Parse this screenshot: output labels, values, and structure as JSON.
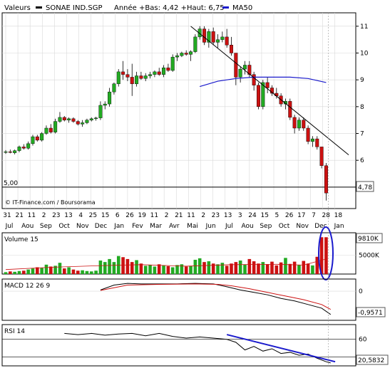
{
  "legend": {
    "series_label": "Valeurs",
    "ticker": "SONAE IND.SGP",
    "range_text": "Année +Bas: 4,42 +Haut: 6,75",
    "ma_label": "MA50"
  },
  "colors": {
    "up": "#22aa22",
    "down": "#cc1111",
    "ma": "#1a1acc",
    "trend": "#1a1acc",
    "grid": "#d8d8d8",
    "axis": "#000000",
    "callout_border": "#1a1acc"
  },
  "credit": "© IT-Finance.com / Boursorama",
  "reference_line": {
    "value": 5,
    "label": "5,00"
  },
  "last_price_label": "4,78",
  "chart_data": [
    {
      "type": "candlestick",
      "title": "SONAE IND.SGP",
      "y_axis": {
        "ticks": [
          6,
          7,
          8,
          9,
          10,
          11
        ],
        "min": 4.2,
        "max": 11.5,
        "side": "right"
      },
      "x_axis": {
        "day_labels": [
          "31",
          "21",
          "11",
          "2",
          "23",
          "13",
          "4",
          "25",
          "15",
          "6",
          "26",
          "19",
          "11",
          "2",
          "21",
          "11",
          "2",
          "23",
          "13",
          "3",
          "24",
          "15",
          "5",
          "26",
          "17",
          "7",
          "28",
          "18"
        ],
        "month_labels": [
          "Jul",
          "Aou",
          "Sep",
          "Oct",
          "Nov",
          "Dec",
          "Jan",
          "Fev",
          "Mar",
          "Avr",
          "Mai",
          "Jun",
          "Jul",
          "Aou",
          "Sep",
          "Oct",
          "Nov",
          "Dec",
          "Jan"
        ]
      },
      "candles": [
        {
          "o": 6.3,
          "h": 6.38,
          "l": 6.24,
          "c": 6.32
        },
        {
          "o": 6.32,
          "h": 6.4,
          "l": 6.26,
          "c": 6.3
        },
        {
          "o": 6.28,
          "h": 6.4,
          "l": 6.22,
          "c": 6.36
        },
        {
          "o": 6.36,
          "h": 6.55,
          "l": 6.3,
          "c": 6.5
        },
        {
          "o": 6.5,
          "h": 6.6,
          "l": 6.4,
          "c": 6.45
        },
        {
          "o": 6.45,
          "h": 6.7,
          "l": 6.4,
          "c": 6.62
        },
        {
          "o": 6.62,
          "h": 6.95,
          "l": 6.55,
          "c": 6.88
        },
        {
          "o": 6.88,
          "h": 6.95,
          "l": 6.7,
          "c": 6.75
        },
        {
          "o": 6.75,
          "h": 7.05,
          "l": 6.7,
          "c": 7.0
        },
        {
          "o": 7.0,
          "h": 7.3,
          "l": 6.95,
          "c": 7.2
        },
        {
          "o": 7.2,
          "h": 7.35,
          "l": 7.0,
          "c": 7.05
        },
        {
          "o": 7.05,
          "h": 7.55,
          "l": 7.0,
          "c": 7.45
        },
        {
          "o": 7.45,
          "h": 7.8,
          "l": 7.4,
          "c": 7.6
        },
        {
          "o": 7.6,
          "h": 7.65,
          "l": 7.45,
          "c": 7.5
        },
        {
          "o": 7.5,
          "h": 7.6,
          "l": 7.4,
          "c": 7.55
        },
        {
          "o": 7.55,
          "h": 7.6,
          "l": 7.4,
          "c": 7.45
        },
        {
          "o": 7.45,
          "h": 7.5,
          "l": 7.3,
          "c": 7.35
        },
        {
          "o": 7.35,
          "h": 7.5,
          "l": 7.25,
          "c": 7.4
        },
        {
          "o": 7.4,
          "h": 7.55,
          "l": 7.35,
          "c": 7.5
        },
        {
          "o": 7.5,
          "h": 7.6,
          "l": 7.45,
          "c": 7.55
        },
        {
          "o": 7.55,
          "h": 7.62,
          "l": 7.48,
          "c": 7.58
        },
        {
          "o": 7.58,
          "h": 8.2,
          "l": 7.5,
          "c": 8.05
        },
        {
          "o": 8.05,
          "h": 8.2,
          "l": 7.9,
          "c": 8.1
        },
        {
          "o": 8.1,
          "h": 8.7,
          "l": 8.0,
          "c": 8.55
        },
        {
          "o": 8.55,
          "h": 8.9,
          "l": 8.45,
          "c": 8.85
        },
        {
          "o": 8.85,
          "h": 9.4,
          "l": 8.75,
          "c": 9.3
        },
        {
          "o": 9.3,
          "h": 9.7,
          "l": 9.0,
          "c": 9.2
        },
        {
          "o": 9.2,
          "h": 9.4,
          "l": 8.95,
          "c": 9.1
        },
        {
          "o": 9.1,
          "h": 9.6,
          "l": 8.4,
          "c": 8.85
        },
        {
          "o": 8.85,
          "h": 9.3,
          "l": 8.75,
          "c": 9.15
        },
        {
          "o": 9.15,
          "h": 9.3,
          "l": 9.0,
          "c": 9.05
        },
        {
          "o": 9.05,
          "h": 9.25,
          "l": 8.95,
          "c": 9.15
        },
        {
          "o": 9.15,
          "h": 9.3,
          "l": 9.05,
          "c": 9.2
        },
        {
          "o": 9.2,
          "h": 9.35,
          "l": 9.1,
          "c": 9.3
        },
        {
          "o": 9.3,
          "h": 9.45,
          "l": 9.15,
          "c": 9.2
        },
        {
          "o": 9.2,
          "h": 9.55,
          "l": 9.1,
          "c": 9.45
        },
        {
          "o": 9.45,
          "h": 9.6,
          "l": 9.3,
          "c": 9.35
        },
        {
          "o": 9.35,
          "h": 9.95,
          "l": 9.3,
          "c": 9.85
        },
        {
          "o": 9.85,
          "h": 10.0,
          "l": 9.7,
          "c": 9.9
        },
        {
          "o": 9.9,
          "h": 10.05,
          "l": 9.85,
          "c": 10.0
        },
        {
          "o": 10.0,
          "h": 10.1,
          "l": 9.9,
          "c": 9.95
        },
        {
          "o": 9.95,
          "h": 10.1,
          "l": 9.7,
          "c": 10.05
        },
        {
          "o": 10.05,
          "h": 10.7,
          "l": 10.0,
          "c": 10.6
        },
        {
          "o": 10.6,
          "h": 11.0,
          "l": 10.5,
          "c": 10.9
        },
        {
          "o": 10.9,
          "h": 11.0,
          "l": 10.3,
          "c": 10.4
        },
        {
          "o": 10.4,
          "h": 10.9,
          "l": 10.2,
          "c": 10.8
        },
        {
          "o": 10.8,
          "h": 10.95,
          "l": 10.3,
          "c": 10.4
        },
        {
          "o": 10.4,
          "h": 10.7,
          "l": 10.2,
          "c": 10.5
        },
        {
          "o": 10.5,
          "h": 10.8,
          "l": 10.4,
          "c": 10.6
        },
        {
          "o": 10.6,
          "h": 10.9,
          "l": 10.2,
          "c": 10.3
        },
        {
          "o": 10.3,
          "h": 10.6,
          "l": 9.9,
          "c": 10.0
        },
        {
          "o": 10.0,
          "h": 10.0,
          "l": 8.8,
          "c": 9.1
        },
        {
          "o": 9.1,
          "h": 9.5,
          "l": 8.9,
          "c": 9.4
        },
        {
          "o": 9.4,
          "h": 9.7,
          "l": 9.2,
          "c": 9.55
        },
        {
          "o": 9.55,
          "h": 9.7,
          "l": 9.1,
          "c": 9.2
        },
        {
          "o": 9.2,
          "h": 9.3,
          "l": 8.6,
          "c": 8.8
        },
        {
          "o": 8.8,
          "h": 8.9,
          "l": 7.9,
          "c": 8.0
        },
        {
          "o": 8.0,
          "h": 9.0,
          "l": 7.9,
          "c": 8.9
        },
        {
          "o": 8.9,
          "h": 9.1,
          "l": 8.5,
          "c": 8.7
        },
        {
          "o": 8.7,
          "h": 8.8,
          "l": 8.4,
          "c": 8.5
        },
        {
          "o": 8.5,
          "h": 8.7,
          "l": 8.3,
          "c": 8.4
        },
        {
          "o": 8.4,
          "h": 8.5,
          "l": 8.0,
          "c": 8.1
        },
        {
          "o": 8.1,
          "h": 8.3,
          "l": 7.9,
          "c": 8.2
        },
        {
          "o": 8.2,
          "h": 8.3,
          "l": 7.5,
          "c": 7.6
        },
        {
          "o": 7.6,
          "h": 7.7,
          "l": 7.0,
          "c": 7.2
        },
        {
          "o": 7.2,
          "h": 7.6,
          "l": 7.1,
          "c": 7.5
        },
        {
          "o": 7.5,
          "h": 7.6,
          "l": 7.1,
          "c": 7.2
        },
        {
          "o": 7.2,
          "h": 7.3,
          "l": 6.6,
          "c": 6.7
        },
        {
          "o": 6.7,
          "h": 6.9,
          "l": 6.5,
          "c": 6.8
        },
        {
          "o": 6.8,
          "h": 6.9,
          "l": 6.4,
          "c": 6.5
        },
        {
          "o": 6.5,
          "h": 6.5,
          "l": 5.7,
          "c": 5.8
        },
        {
          "o": 5.8,
          "h": 5.9,
          "l": 4.5,
          "c": 4.78
        }
      ],
      "ma50": {
        "name": "MA50",
        "points": [
          [
            43,
            8.75
          ],
          [
            47,
            8.95
          ],
          [
            51,
            9.05
          ],
          [
            55,
            9.1
          ],
          [
            59,
            9.1
          ],
          [
            63,
            9.1
          ],
          [
            67,
            9.05
          ],
          [
            71,
            8.9
          ]
        ]
      },
      "trendline": {
        "from": [
          41,
          11.0
        ],
        "to": [
          76,
          6.2
        ]
      }
    },
    {
      "type": "bar",
      "title": "Volume 15",
      "y_ticks": [
        5000
      ],
      "y_tick_labels": [
        "5000K"
      ],
      "last_value_label": "9810K",
      "max": 11000,
      "values": [
        500,
        700,
        600,
        800,
        900,
        1200,
        1500,
        1800,
        1600,
        2500,
        2000,
        2200,
        3000,
        1500,
        1800,
        1200,
        900,
        1000,
        800,
        700,
        900,
        3600,
        3200,
        4000,
        3200,
        4800,
        4500,
        4000,
        3200,
        3700,
        2800,
        2200,
        2400,
        2000,
        2600,
        2300,
        2100,
        1800,
        2400,
        2600,
        2000,
        2200,
        3800,
        4200,
        3200,
        3400,
        2800,
        2600,
        3000,
        2200,
        2800,
        3200,
        3600,
        2500,
        4000,
        3400,
        2800,
        3200,
        2600,
        3300,
        2300,
        3100,
        4300,
        2700,
        3300,
        2400,
        3500,
        2800,
        2300,
        4600,
        9810,
        9810
      ],
      "signal_line": [
        [
          0,
          1200
        ],
        [
          10,
          1800
        ],
        [
          20,
          2200
        ],
        [
          30,
          2500
        ],
        [
          40,
          2100
        ],
        [
          50,
          2500
        ],
        [
          60,
          2600
        ],
        [
          66,
          2400
        ],
        [
          71,
          4000
        ]
      ]
    },
    {
      "type": "line",
      "title": "MACD 12 26 9",
      "y_ticks": [
        0
      ],
      "last_value_label": "-0,9571",
      "min": -1.2,
      "max": 0.5,
      "macd": [
        [
          21,
          0.05
        ],
        [
          24,
          0.25
        ],
        [
          27,
          0.32
        ],
        [
          30,
          0.3
        ],
        [
          34,
          0.3
        ],
        [
          38,
          0.3
        ],
        [
          42,
          0.32
        ],
        [
          46,
          0.3
        ],
        [
          49,
          0.18
        ],
        [
          52,
          0.05
        ],
        [
          55,
          -0.05
        ],
        [
          58,
          -0.15
        ],
        [
          61,
          -0.3
        ],
        [
          64,
          -0.4
        ],
        [
          67,
          -0.55
        ],
        [
          70,
          -0.7
        ],
        [
          72,
          -0.96
        ]
      ],
      "signal": [
        [
          21,
          0.03
        ],
        [
          27,
          0.25
        ],
        [
          34,
          0.28
        ],
        [
          42,
          0.3
        ],
        [
          47,
          0.28
        ],
        [
          50,
          0.22
        ],
        [
          54,
          0.1
        ],
        [
          58,
          -0.05
        ],
        [
          62,
          -0.2
        ],
        [
          66,
          -0.35
        ],
        [
          70,
          -0.55
        ],
        [
          72,
          -0.75
        ]
      ]
    },
    {
      "type": "line",
      "title": "RSI 14",
      "y_ticks": [
        60
      ],
      "last_value_label": "20,5832",
      "min": 15,
      "max": 85,
      "guide_lines": [
        30
      ],
      "values": [
        [
          13,
          70
        ],
        [
          16,
          68
        ],
        [
          19,
          70
        ],
        [
          22,
          67
        ],
        [
          25,
          69
        ],
        [
          28,
          70
        ],
        [
          31,
          66
        ],
        [
          34,
          70
        ],
        [
          37,
          65
        ],
        [
          40,
          62
        ],
        [
          43,
          64
        ],
        [
          46,
          62
        ],
        [
          49,
          60
        ],
        [
          51,
          55
        ],
        [
          53,
          42
        ],
        [
          55,
          48
        ],
        [
          57,
          40
        ],
        [
          59,
          44
        ],
        [
          61,
          36
        ],
        [
          63,
          38
        ],
        [
          65,
          33
        ],
        [
          67,
          35
        ],
        [
          69,
          28
        ],
        [
          71,
          22
        ],
        [
          72,
          20
        ]
      ],
      "trendline": {
        "from": [
          49,
          68
        ],
        "to": [
          73,
          22
        ]
      }
    }
  ]
}
